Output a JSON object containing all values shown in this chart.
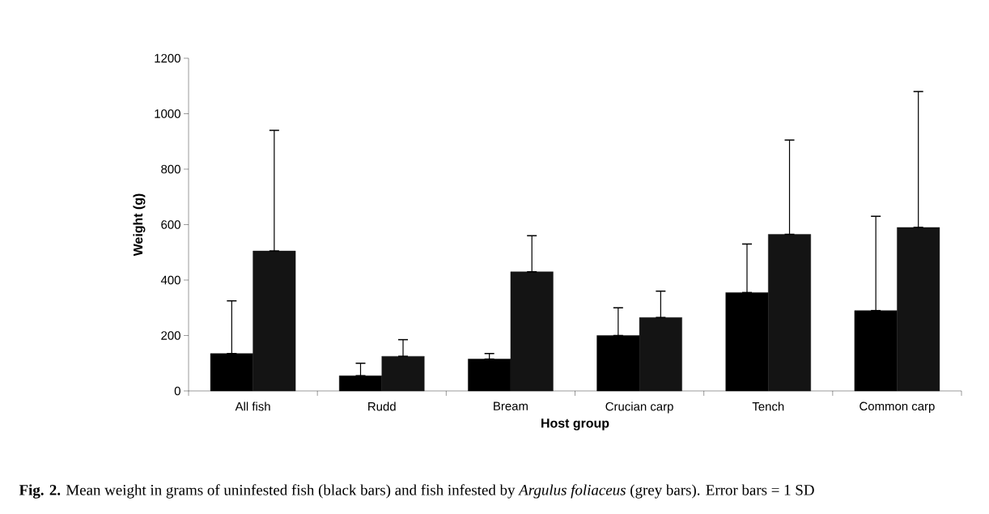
{
  "chart_data": {
    "type": "bar",
    "xlabel": "Host group",
    "ylabel": "Weight (g)",
    "annotations": [
      "**Fig. 2.** Mean weight in grams of uninfested fish (black bars) and fish infested by *Argulus foliaceus* (grey bars). Error bars = 1 SD"
    ],
    "categories": [
      "All fish",
      "Rudd",
      "Bream",
      "Crucian carp",
      "Tench",
      "Common carp"
    ],
    "series": [
      {
        "color": "#000000",
        "values": [
          135,
          55,
          115,
          200,
          355,
          290
        ],
        "errors": [
          [
            135,
            325
          ],
          [
            55,
            100
          ],
          [
            115,
            135
          ],
          [
            200,
            300
          ],
          [
            355,
            530
          ],
          [
            290,
            630
          ]
        ]
      },
      {
        "color": "#141414",
        "values": [
          505,
          125,
          430,
          265,
          565,
          590
        ],
        "errors": [
          [
            505,
            940
          ],
          [
            125,
            185
          ],
          [
            430,
            560
          ],
          [
            265,
            360
          ],
          [
            565,
            905
          ],
          [
            590,
            1080
          ]
        ]
      }
    ],
    "ylim": [
      0,
      1200
    ],
    "yticks": [
      0,
      200,
      400,
      600,
      800,
      1000,
      1200
    ],
    "grid": false
  }
}
